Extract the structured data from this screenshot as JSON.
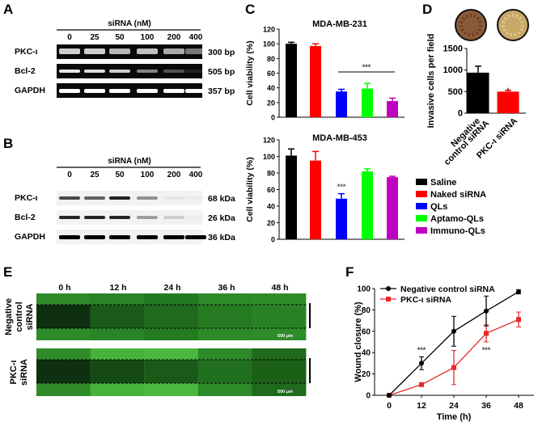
{
  "panel_letters": {
    "A": "A",
    "B": "B",
    "C": "C",
    "D": "D",
    "E": "E",
    "F": "F"
  },
  "gel_A": {
    "header": "siRNA (nM)",
    "concentrations": [
      "0",
      "25",
      "50",
      "100",
      "200",
      "400"
    ],
    "rows": [
      {
        "label": "PKC-ι",
        "size": "300 bp",
        "band_intensity": [
          0.8,
          0.8,
          0.7,
          0.75,
          0.65,
          0.45
        ]
      },
      {
        "label": "Bcl-2",
        "size": "505 bp",
        "band_intensity": [
          0.9,
          0.85,
          0.8,
          0.5,
          0.3,
          0.1
        ]
      },
      {
        "label": "GAPDH",
        "size": "357 bp",
        "band_intensity": [
          1,
          1,
          1,
          1,
          1,
          1
        ]
      }
    ]
  },
  "blot_B": {
    "header": "siRNA (nM)",
    "concentrations": [
      "0",
      "25",
      "50",
      "100",
      "200",
      "400"
    ],
    "rows": [
      {
        "label": "PKC-ι",
        "size": "68 kDa",
        "band_intensity": [
          0.7,
          0.6,
          0.85,
          0.4,
          0.05,
          0.03
        ]
      },
      {
        "label": "Bcl-2",
        "size": "26 kDa",
        "band_intensity": [
          0.85,
          0.85,
          0.85,
          0.35,
          0.15,
          0.02
        ]
      },
      {
        "label": "GAPDH",
        "size": "36 kDa",
        "band_intensity": [
          1,
          1,
          1,
          1,
          1,
          1
        ]
      }
    ]
  },
  "chart_data": [
    {
      "type": "bar",
      "panel": "C",
      "title": "MDA-MB-231",
      "ylabel": "Cell viability (%)",
      "ylim": [
        0,
        120
      ],
      "yticks": [
        "0",
        "20",
        "40",
        "60",
        "80",
        "100",
        "120"
      ],
      "categories": [
        "Saline",
        "Naked siRNA",
        "QLs",
        "Aptamo-QLs",
        "Immuno-QLs"
      ],
      "values": [
        100,
        97,
        35,
        39,
        22
      ],
      "errors": [
        2,
        3,
        3,
        7,
        4
      ],
      "colors": [
        "#000000",
        "#ff0000",
        "#0000ff",
        "#00ff00",
        "#c000c0"
      ],
      "annotation": "***"
    },
    {
      "type": "bar",
      "panel": "C",
      "title": "MDA-MB-453",
      "ylabel": "Cell viability (%)",
      "ylim": [
        0,
        120
      ],
      "yticks": [
        "0",
        "20",
        "40",
        "60",
        "80",
        "100",
        "120"
      ],
      "categories": [
        "Saline",
        "Naked siRNA",
        "QLs",
        "Aptamo-QLs",
        "Immuno-QLs"
      ],
      "values": [
        101,
        95,
        49,
        82,
        75
      ],
      "errors": [
        8,
        11,
        6,
        3,
        1
      ],
      "colors": [
        "#000000",
        "#ff0000",
        "#0000ff",
        "#00ff00",
        "#c000c0"
      ],
      "annotation": "***",
      "legend": [
        "Saline",
        "Naked siRNA",
        "QLs",
        "Aptamo-QLs",
        "Immuno-QLs"
      ],
      "legend_position": "right"
    },
    {
      "type": "bar",
      "panel": "D",
      "ylabel": "Invasive cells per field",
      "ylim": [
        0,
        1500
      ],
      "yticks": [
        "0",
        "500",
        "1000",
        "1500"
      ],
      "categories": [
        "Negative control siRNA",
        "PKC-ι siRNA"
      ],
      "category_lines": [
        [
          "Negative",
          "control siRNA"
        ],
        [
          "PKC-ι siRNA"
        ]
      ],
      "values": [
        940,
        500
      ],
      "errors": [
        150,
        30
      ],
      "colors": [
        "#000000",
        "#ff0000"
      ],
      "annotation": "*"
    },
    {
      "type": "line",
      "panel": "F",
      "xlabel": "Time (h)",
      "ylabel": "Wound closure (%)",
      "xlim": [
        0,
        48
      ],
      "ylim": [
        0,
        100
      ],
      "xticks": [
        "0",
        "12",
        "24",
        "36",
        "48"
      ],
      "yticks": [
        "0",
        "20",
        "40",
        "60",
        "80",
        "100"
      ],
      "x": [
        0,
        12,
        24,
        36,
        48
      ],
      "series": [
        {
          "name": "Negative control siRNA",
          "values": [
            0,
            30,
            60,
            79,
            97
          ],
          "errors": [
            1,
            6,
            14,
            14,
            2
          ],
          "color": "#000000",
          "marker": "circle"
        },
        {
          "name": "PKC-ι siRNA",
          "values": [
            0,
            10,
            26,
            58,
            71
          ],
          "errors": [
            1,
            1,
            16,
            8,
            7
          ],
          "color": "#e8282a",
          "marker": "square"
        }
      ],
      "annotations": [
        {
          "x": 12,
          "text": "***"
        },
        {
          "x": 36,
          "text": "***"
        }
      ],
      "legend_position": "top-left"
    }
  ],
  "panel_E": {
    "timepoints": [
      "0 h",
      "12 h",
      "24 h",
      "36 h",
      "48 h"
    ],
    "rows": [
      {
        "label_lines": [
          "Negative",
          "control",
          "siRNA"
        ],
        "scale_bar": "500 μm"
      },
      {
        "label_lines": [
          "PKC-ι",
          "siRNA"
        ],
        "scale_bar": "500 μm"
      }
    ]
  }
}
